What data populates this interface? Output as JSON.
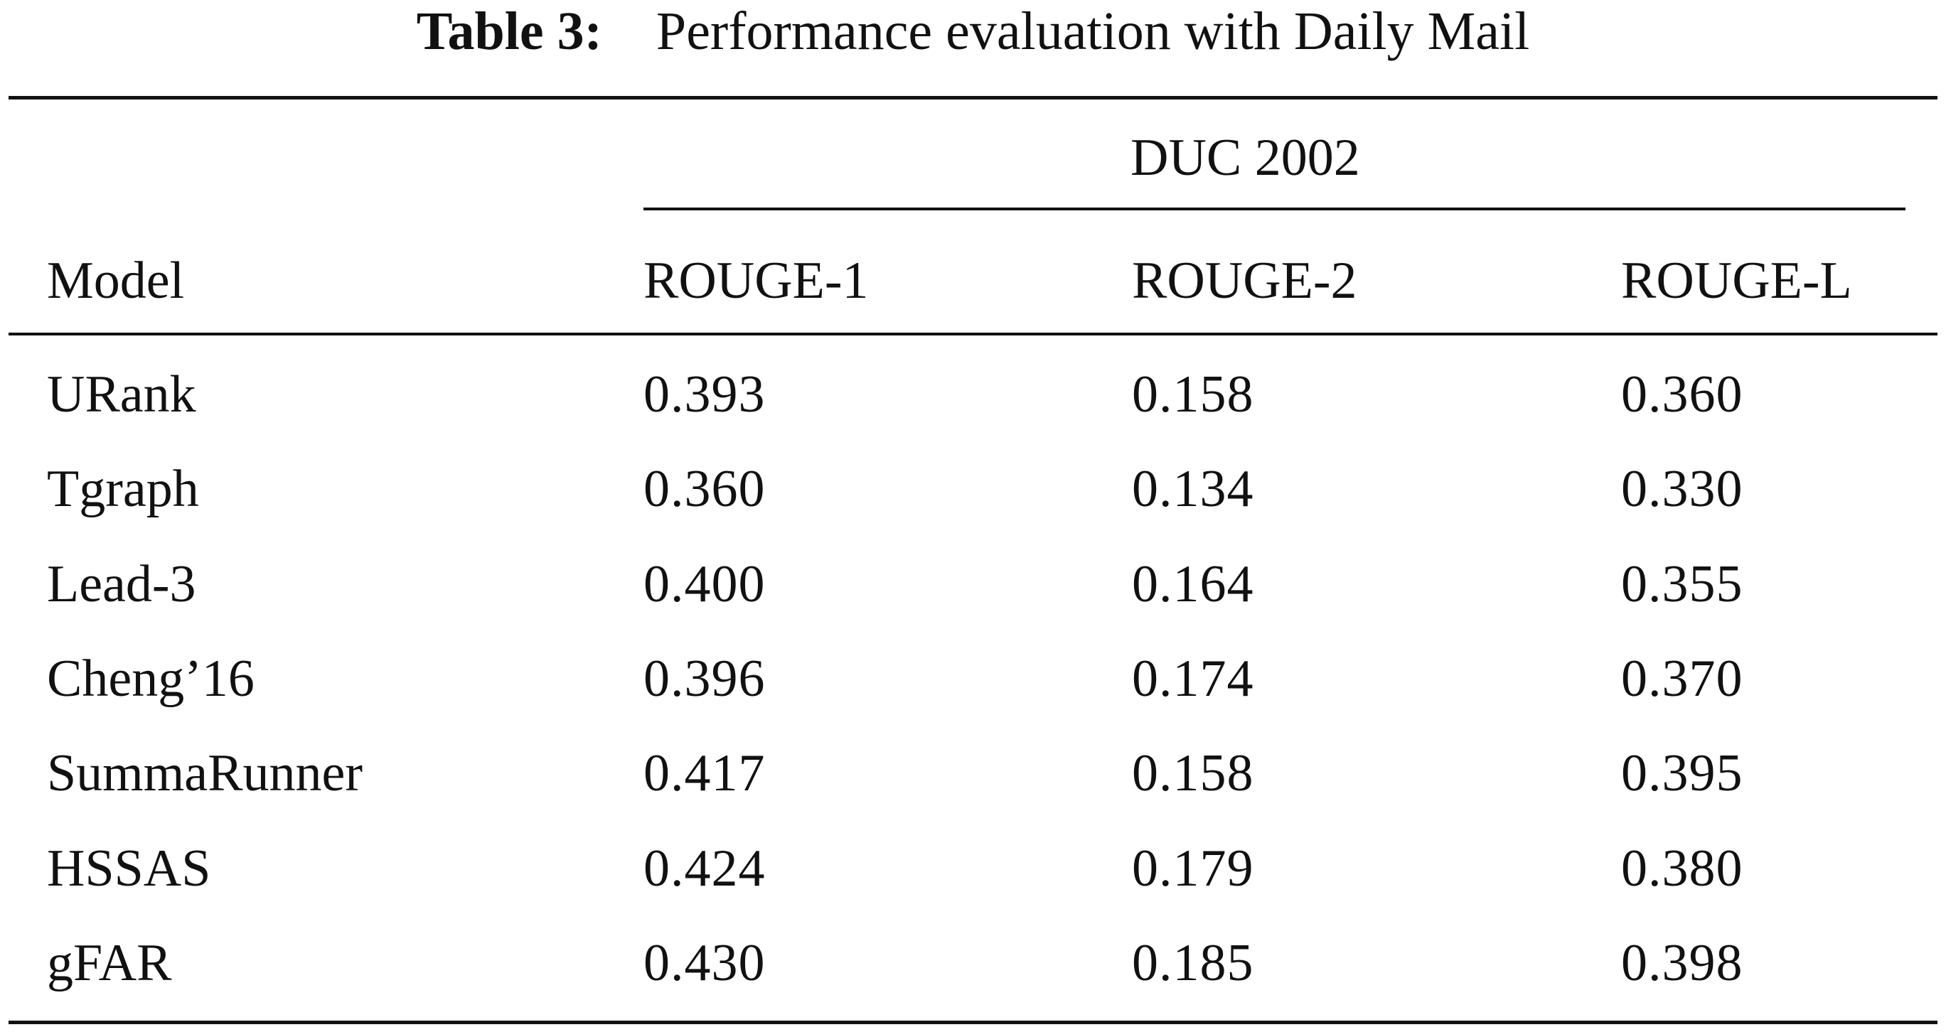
{
  "caption": {
    "label": "Table 3:",
    "text": "Performance evaluation with Daily Mail"
  },
  "table": {
    "group_header": "DUC 2002",
    "columns": [
      "Model",
      "ROUGE-1",
      "ROUGE-2",
      "ROUGE-L"
    ],
    "rows": [
      {
        "model": "URank",
        "r1": "0.393",
        "r2": "0.158",
        "rl": "0.360"
      },
      {
        "model": "Tgraph",
        "r1": "0.360",
        "r2": "0.134",
        "rl": "0.330"
      },
      {
        "model": "Lead-3",
        "r1": "0.400",
        "r2": "0.164",
        "rl": "0.355"
      },
      {
        "model": "Cheng’16",
        "r1": "0.396",
        "r2": "0.174",
        "rl": "0.370"
      },
      {
        "model": "SummaRunner",
        "r1": "0.417",
        "r2": "0.158",
        "rl": "0.395"
      },
      {
        "model": "HSSAS",
        "r1": "0.424",
        "r2": "0.179",
        "rl": "0.380"
      },
      {
        "model": "gFAR",
        "r1": "0.430",
        "r2": "0.185",
        "rl": "0.398"
      }
    ]
  }
}
